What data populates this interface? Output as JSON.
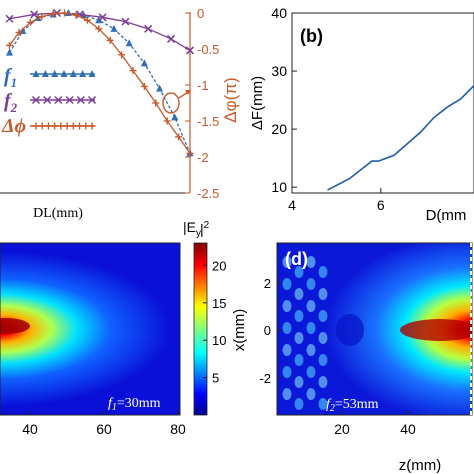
{
  "chart_data": [
    {
      "panel": "a",
      "type": "line",
      "xlabel": "DL(mm)",
      "ylabel_right": "Δφ(π)",
      "right_ticks": [
        "0",
        "-0.5",
        "-1",
        "-1.5",
        "-2",
        "-2.5"
      ],
      "y2lim": [
        -2.5,
        0
      ],
      "xlim": [
        0,
        1
      ],
      "grid": false,
      "legend_position": "left",
      "series": [
        {
          "name": "f",
          "sub": "1",
          "color": "#2f6fb6",
          "marker": "triangle",
          "x": [
            0.05,
            0.12,
            0.2,
            0.28,
            0.36,
            0.44,
            0.52,
            0.6,
            0.68,
            0.76,
            0.84,
            0.92,
            1.0
          ],
          "y": [
            -0.55,
            -0.25,
            -0.07,
            -0.02,
            0.0,
            -0.03,
            -0.1,
            -0.22,
            -0.42,
            -0.7,
            -1.05,
            -1.45,
            -1.95
          ]
        },
        {
          "name": "f",
          "sub": "2",
          "color": "#7d3c98",
          "marker": "x",
          "x": [
            0.05,
            0.18,
            0.3,
            0.42,
            0.54,
            0.66,
            0.78,
            0.9,
            1.0
          ],
          "y": [
            -0.08,
            -0.02,
            0.0,
            -0.02,
            -0.06,
            -0.12,
            -0.22,
            -0.36,
            -0.52
          ]
        },
        {
          "name": "Δϕ",
          "sub": "",
          "color": "#c65a2a",
          "marker": "plus",
          "x": [
            0.05,
            0.1,
            0.16,
            0.22,
            0.28,
            0.34,
            0.4,
            0.46,
            0.52,
            0.58,
            0.64,
            0.7,
            0.76,
            0.82,
            0.88,
            0.94,
            1.0
          ],
          "y": [
            -0.45,
            -0.27,
            -0.13,
            -0.05,
            -0.01,
            0.0,
            -0.03,
            -0.1,
            -0.22,
            -0.38,
            -0.58,
            -0.8,
            -1.02,
            -1.25,
            -1.5,
            -1.72,
            -1.95
          ]
        }
      ]
    },
    {
      "panel": "b",
      "type": "line",
      "label": "(b)",
      "xlabel": "D(mm",
      "ylabel": "ΔF(mm)",
      "x_ticks": [
        "4",
        "6"
      ],
      "y_ticks": [
        "10",
        "20",
        "30",
        "40"
      ],
      "xlim": [
        4,
        8.1
      ],
      "ylim": [
        9,
        40
      ],
      "series": [
        {
          "color": "#1f5fa8",
          "x": [
            4.8,
            5.3,
            5.8,
            5.95,
            6.3,
            6.6,
            6.9,
            7.2,
            7.5,
            7.8,
            8.1
          ],
          "y": [
            9.5,
            11.5,
            14.5,
            14.5,
            15.5,
            17.5,
            19.5,
            22.0,
            23.8,
            25.2,
            27.5
          ]
        }
      ]
    },
    {
      "panel": "c",
      "type": "heatmap",
      "colorbar_label": "|E",
      "colorbar_sub": "y",
      "colorbar_sup": "2",
      "colorbar_ticks": [
        "20",
        "15",
        "10",
        "5"
      ],
      "colorbar_range": [
        0,
        23
      ],
      "x_ticks": [
        "40",
        "60",
        "80"
      ],
      "annotation": "f",
      "annotation_sub": "1",
      "annotation_tail": "=30mm"
    },
    {
      "panel": "d",
      "type": "heatmap",
      "label": "(d)",
      "xlabel": "z(mm)",
      "ylabel": "x(mm)",
      "x_ticks": [
        "20",
        "40"
      ],
      "y_ticks": [
        "2",
        "0",
        "-2"
      ],
      "annotation": "f",
      "annotation_sub": "2",
      "annotation_tail": "=53mm"
    }
  ]
}
